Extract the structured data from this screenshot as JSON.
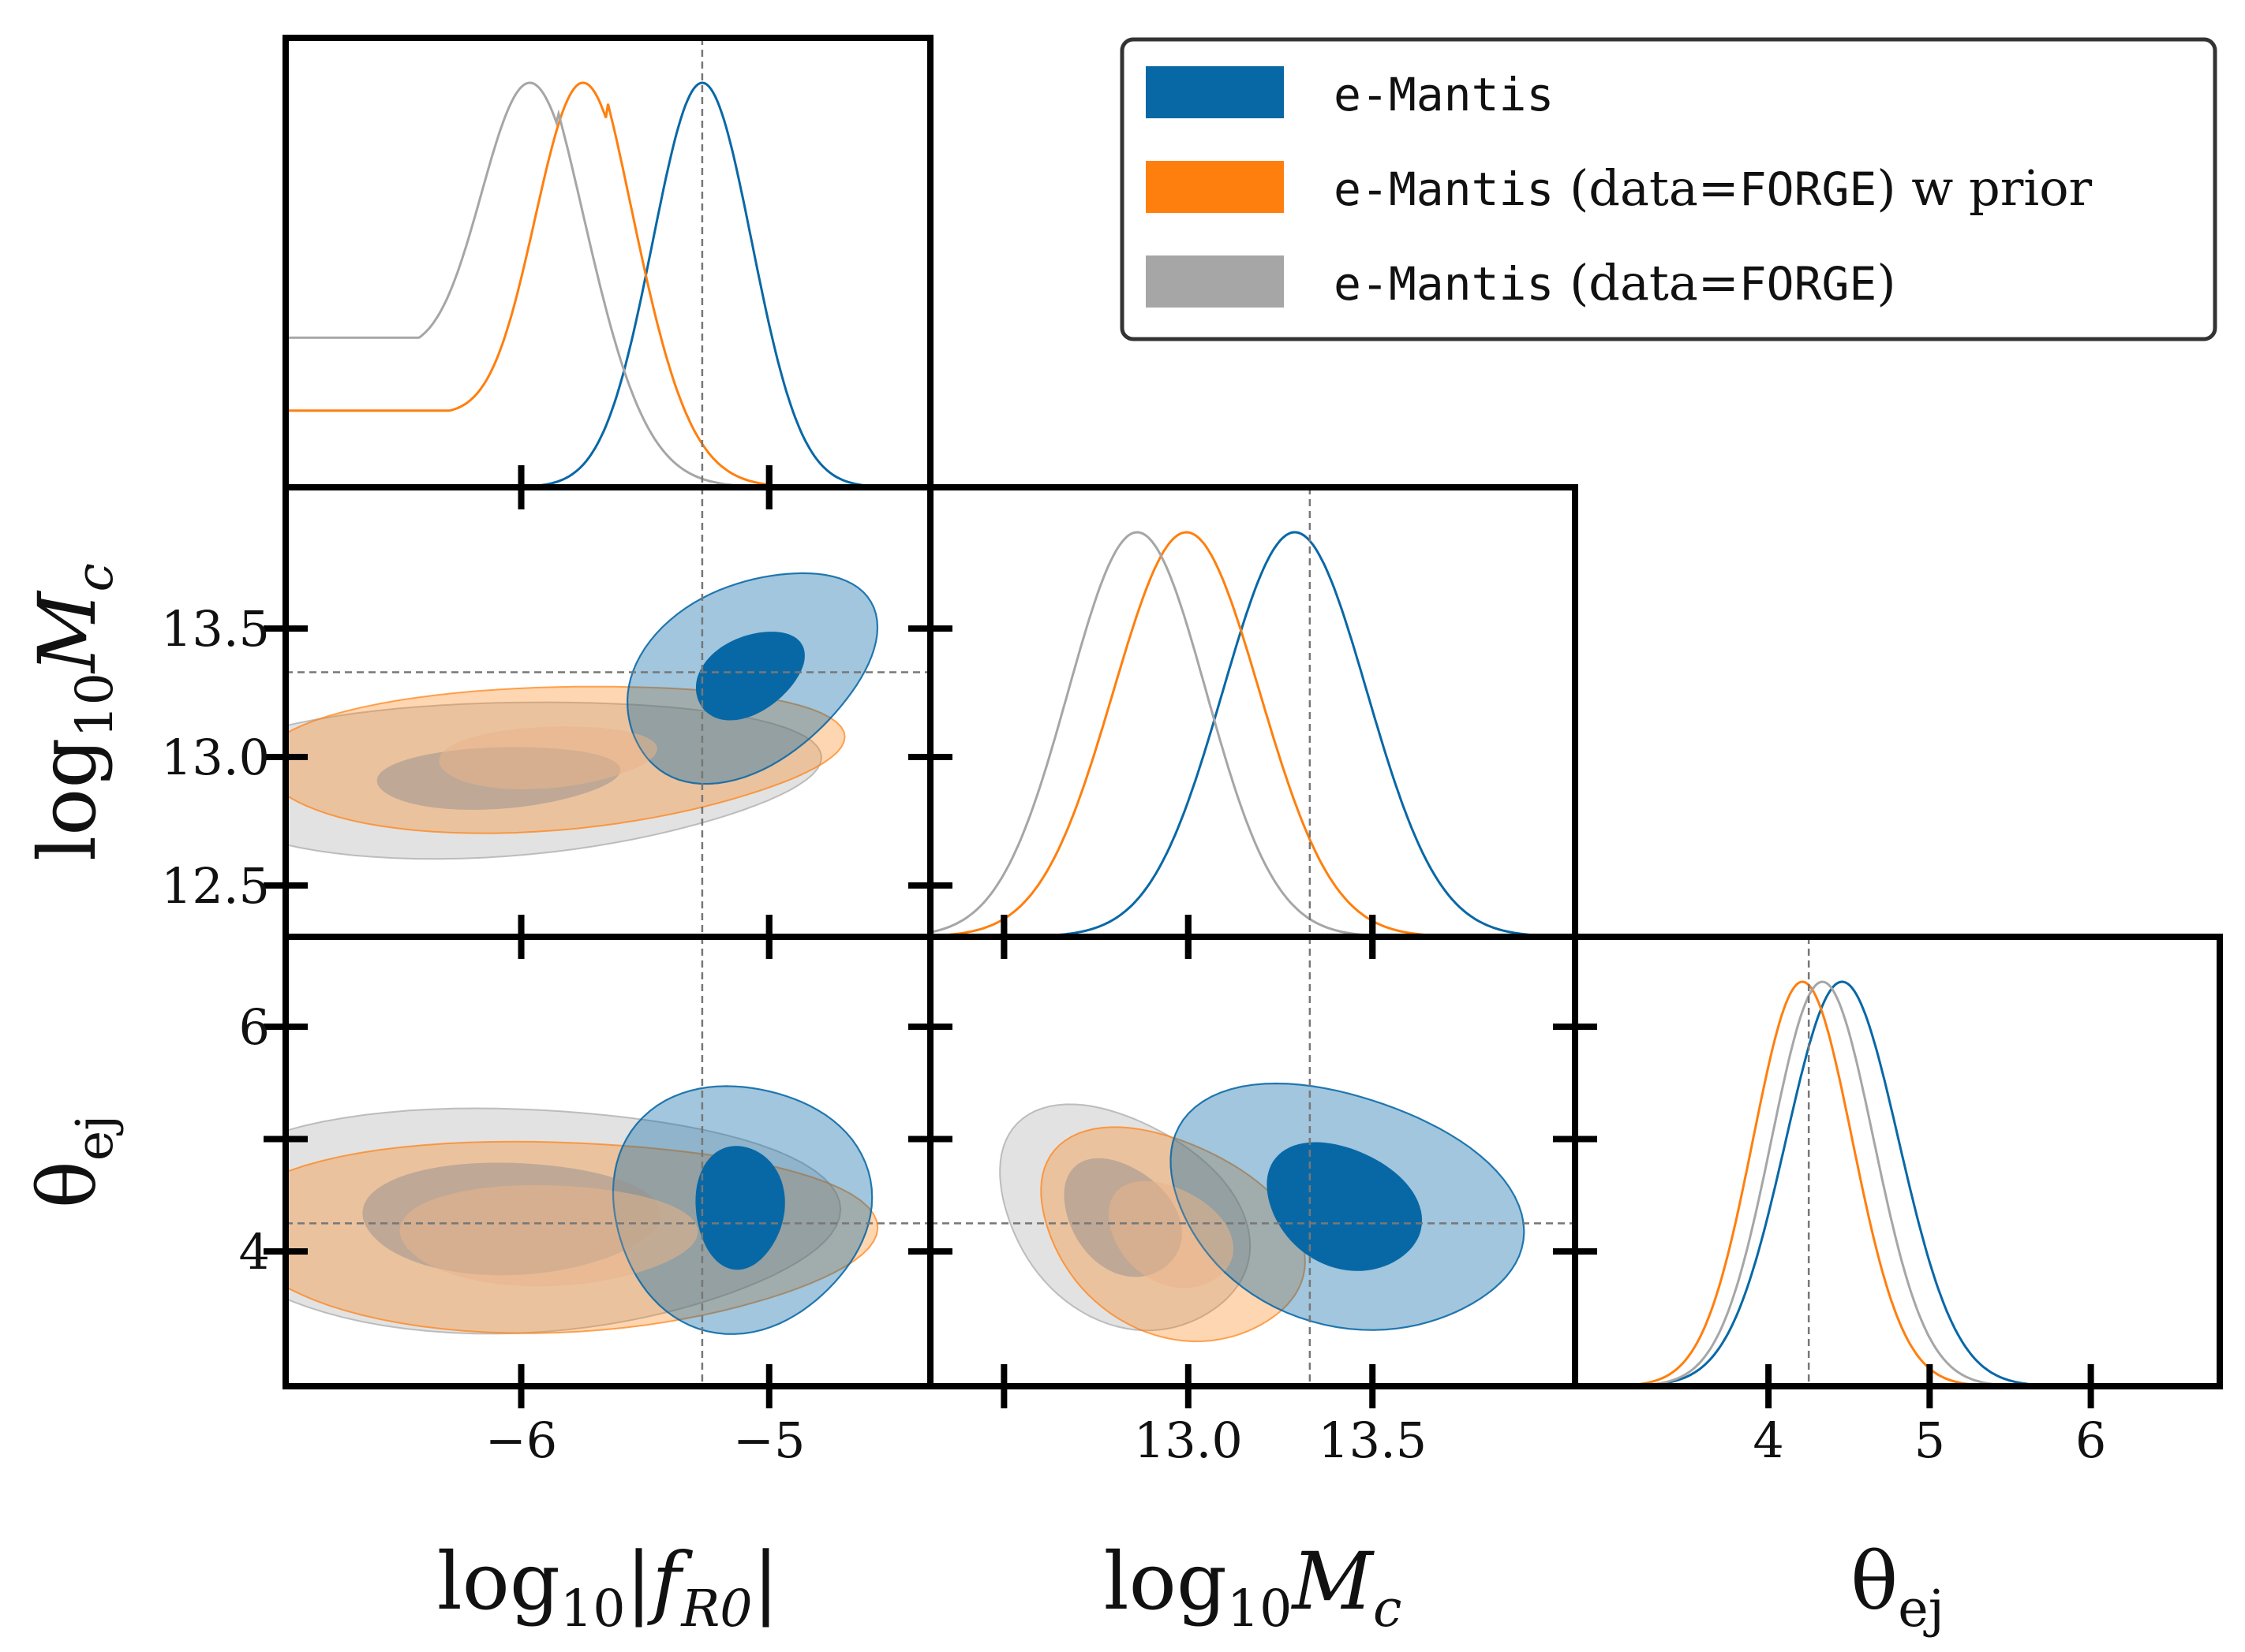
{
  "chart_data": {
    "type": "corner",
    "parameters": [
      {
        "key": "fR0",
        "label_main": "log",
        "label_sub": "10",
        "label_tail": "|f",
        "label_tail_sub": "R0",
        "label_end": "|",
        "range": [
          -6.95,
          -4.35
        ],
        "truth": -5.27,
        "ticks": [
          -6,
          -5
        ],
        "tick_labels": [
          "−6",
          "−5"
        ]
      },
      {
        "key": "Mc",
        "label_main": "log",
        "label_sub": "10",
        "label_tail": "M",
        "label_tail_sub": "c",
        "label_end": "",
        "range": [
          12.3,
          14.05
        ],
        "truth": 13.33,
        "ticks": [
          12.5,
          13.0,
          13.5
        ],
        "tick_labels": [
          "12.5",
          "13.0",
          "13.5"
        ]
      },
      {
        "key": "theta_ej",
        "label_main": "θ",
        "label_sub": "ej",
        "label_tail": "",
        "label_tail_sub": "",
        "label_end": "",
        "range": [
          2.8,
          6.8
        ],
        "truth": 4.25,
        "ticks": [
          4,
          5,
          6
        ],
        "tick_labels": [
          "4",
          "5",
          "6"
        ]
      }
    ],
    "bottom_tick_labels": {
      "fR0": [
        "−6",
        "−5"
      ],
      "Mc": [
        "13.0",
        "13.5"
      ],
      "theta_ej": [
        "4",
        "5",
        "6"
      ]
    },
    "left_tick_labels": {
      "Mc": [
        "12.5",
        "13.0",
        "13.5"
      ],
      "theta_ej": [
        "4",
        "6"
      ]
    },
    "series": [
      {
        "name_mono": "e-Mantis",
        "name_rest": "",
        "color": "#0868a6",
        "marginals": {
          "fR0": {
            "mean": -5.27,
            "sd": 0.2,
            "skew": 0.0,
            "tail_floor": 0.0
          },
          "Mc": {
            "mean": 13.33,
            "sd": 0.2,
            "skew": -0.25,
            "tail_floor": 0.0
          },
          "theta_ej": {
            "mean": 4.32,
            "sd": 0.38,
            "skew": 0.5,
            "tail_floor": 0.0
          }
        },
        "contours_fR0_Mc": {
          "center": [
            -5.08,
            13.32
          ],
          "inner": [
            0.24,
            0.16
          ],
          "outer": [
            0.55,
            0.38
          ],
          "angle": 0.42
        },
        "contours_fR0_theta": {
          "center": [
            -5.12,
            4.4
          ],
          "inner": [
            0.18,
            0.55
          ],
          "outer": [
            0.52,
            1.1
          ],
          "angle": 0.0
        },
        "contours_Mc_theta": {
          "center": [
            13.42,
            4.4
          ],
          "inner": [
            0.22,
            0.55
          ],
          "outer": [
            0.5,
            1.05
          ],
          "angle": -0.3
        },
        "filled": true
      },
      {
        "name_mono": "e-Mantis",
        "name_rest": " (data=",
        "name_mono2": "FORGE",
        "name_rest2": ") w prior",
        "color": "#ff7f0e",
        "marginals": {
          "fR0": {
            "mean": -5.65,
            "sd": 0.3,
            "skew": -0.9,
            "tail_floor": 0.2
          },
          "Mc": {
            "mean": 12.97,
            "sd": 0.2,
            "skew": 0.15,
            "tail_floor": 0.0
          },
          "theta_ej": {
            "mean": 4.08,
            "sd": 0.34,
            "skew": 0.55,
            "tail_floor": 0.0
          }
        },
        "contours_fR0_Mc": {
          "center": [
            -5.9,
            13.0
          ],
          "inner": [
            0.45,
            0.12
          ],
          "outer": [
            1.2,
            0.28
          ],
          "angle": 0.22
        },
        "contours_fR0_theta": {
          "center": [
            -5.9,
            4.15
          ],
          "inner": [
            0.6,
            0.45
          ],
          "outer": [
            1.3,
            0.85
          ],
          "angle": 0.0
        },
        "contours_Mc_theta": {
          "center": [
            12.95,
            4.15
          ],
          "inner": [
            0.18,
            0.45
          ],
          "outer": [
            0.38,
            0.9
          ],
          "angle": -0.35
        },
        "filled": true
      },
      {
        "name_mono": "e-Mantis",
        "name_rest": " (data=",
        "name_mono2": "FORGE",
        "name_rest2": ")",
        "color": "#a6a6a6",
        "marginals": {
          "fR0": {
            "mean": -5.85,
            "sd": 0.32,
            "skew": -0.9,
            "tail_floor": 0.4
          },
          "Mc": {
            "mean": 12.83,
            "sd": 0.19,
            "skew": 0.2,
            "tail_floor": 0.0
          },
          "theta_ej": {
            "mean": 4.2,
            "sd": 0.35,
            "skew": 0.55,
            "tail_floor": 0.0
          }
        },
        "contours_fR0_Mc": {
          "center": [
            -6.1,
            12.92
          ],
          "inner": [
            0.5,
            0.12
          ],
          "outer": [
            1.3,
            0.3
          ],
          "angle": 0.2
        },
        "contours_fR0_theta": {
          "center": [
            -6.05,
            4.3
          ],
          "inner": [
            0.6,
            0.5
          ],
          "outer": [
            1.3,
            1.0
          ],
          "angle": 0.0
        },
        "contours_Mc_theta": {
          "center": [
            12.82,
            4.3
          ],
          "inner": [
            0.17,
            0.5
          ],
          "outer": [
            0.36,
            0.95
          ],
          "angle": -0.35
        },
        "filled": true
      }
    ],
    "legend_placement": "top-right",
    "grid": false
  }
}
